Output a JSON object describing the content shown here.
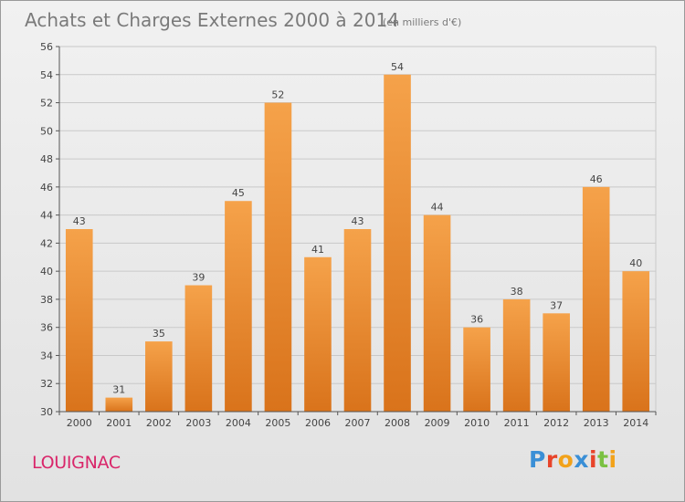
{
  "chart_data": {
    "type": "bar",
    "title": "Achats et Charges Externes 2000 à 2014",
    "subtitle": "(en milliers d'€)",
    "categories": [
      "2000",
      "2001",
      "2002",
      "2003",
      "2004",
      "2005",
      "2006",
      "2007",
      "2008",
      "2009",
      "2010",
      "2011",
      "2012",
      "2013",
      "2014"
    ],
    "values": [
      43,
      31,
      35,
      39,
      45,
      52,
      41,
      43,
      54,
      44,
      36,
      38,
      37,
      46,
      40
    ],
    "ylim": [
      30,
      56
    ],
    "yticks": [
      30,
      32,
      34,
      36,
      38,
      40,
      42,
      44,
      46,
      48,
      50,
      52,
      54,
      56
    ],
    "grid": true,
    "bar_color": "#f08a2a"
  },
  "place_name": "LOUIGNAC",
  "logo": {
    "text": "Proxiti",
    "letters": [
      {
        "ch": "P",
        "color": "#3a8fd6"
      },
      {
        "ch": "r",
        "color": "#e8442a"
      },
      {
        "ch": "o",
        "color": "#f2a21a"
      },
      {
        "ch": "x",
        "color": "#3a8fd6"
      },
      {
        "ch": "i",
        "color": "#e8442a"
      },
      {
        "ch": "t",
        "color": "#7ac142"
      },
      {
        "ch": "i",
        "color": "#f2a21a"
      }
    ]
  }
}
